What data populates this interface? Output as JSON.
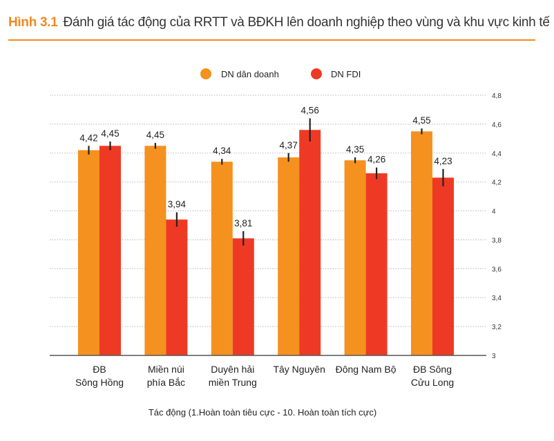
{
  "header": {
    "figure_number": "Hình 3.1",
    "title": "Đánh giá tác động của RRTT và BĐKH lên doanh nghiệp theo vùng và khu vực kinh tế"
  },
  "chart_data": {
    "type": "bar",
    "title": "Đánh giá tác động của RRTT và BĐKH lên doanh nghiệp theo vùng và khu vực kinh tế",
    "xlabel": "Tác động (1.Hoàn toàn tiêu cực - 10. Hoàn toàn tích cực)",
    "ylabel": "",
    "ylim": [
      3,
      4.8
    ],
    "y_ticks": [
      3,
      3.2,
      3.4,
      3.6,
      3.8,
      4,
      4.2,
      4.4,
      4.6,
      4.8
    ],
    "y_tick_labels": [
      "3",
      "3,2",
      "3,4",
      "3,6",
      "3,8",
      "4",
      "4,2",
      "4,4",
      "4,6",
      "4,8"
    ],
    "y_axis_side": "right",
    "grid": true,
    "legend_position": "top-center",
    "categories": [
      [
        "ĐB",
        "Sông Hồng"
      ],
      [
        "Miền núi",
        "phía Bắc"
      ],
      [
        "Duyên hải",
        "miền Trung"
      ],
      [
        "Tây Nguyên"
      ],
      [
        "Đông Nam Bộ"
      ],
      [
        "ĐB Sông",
        "Cửu Long"
      ]
    ],
    "series": [
      {
        "name": "DN dân doanh",
        "color": "#f5911e",
        "values": [
          4.42,
          4.45,
          4.34,
          4.37,
          4.35,
          4.55
        ],
        "labels": [
          "4,42",
          "4,45",
          "4,34",
          "4,37",
          "4,35",
          "4,55"
        ],
        "error": [
          0.03,
          0.02,
          0.02,
          0.03,
          0.02,
          0.02
        ]
      },
      {
        "name": "DN FDI",
        "color": "#ee3a24",
        "values": [
          4.45,
          3.94,
          3.81,
          4.56,
          4.26,
          4.23
        ],
        "labels": [
          "4,45",
          "3,94",
          "3,81",
          "4,56",
          "4,26",
          "4,23"
        ],
        "error": [
          0.03,
          0.05,
          0.05,
          0.08,
          0.04,
          0.06
        ]
      }
    ]
  }
}
